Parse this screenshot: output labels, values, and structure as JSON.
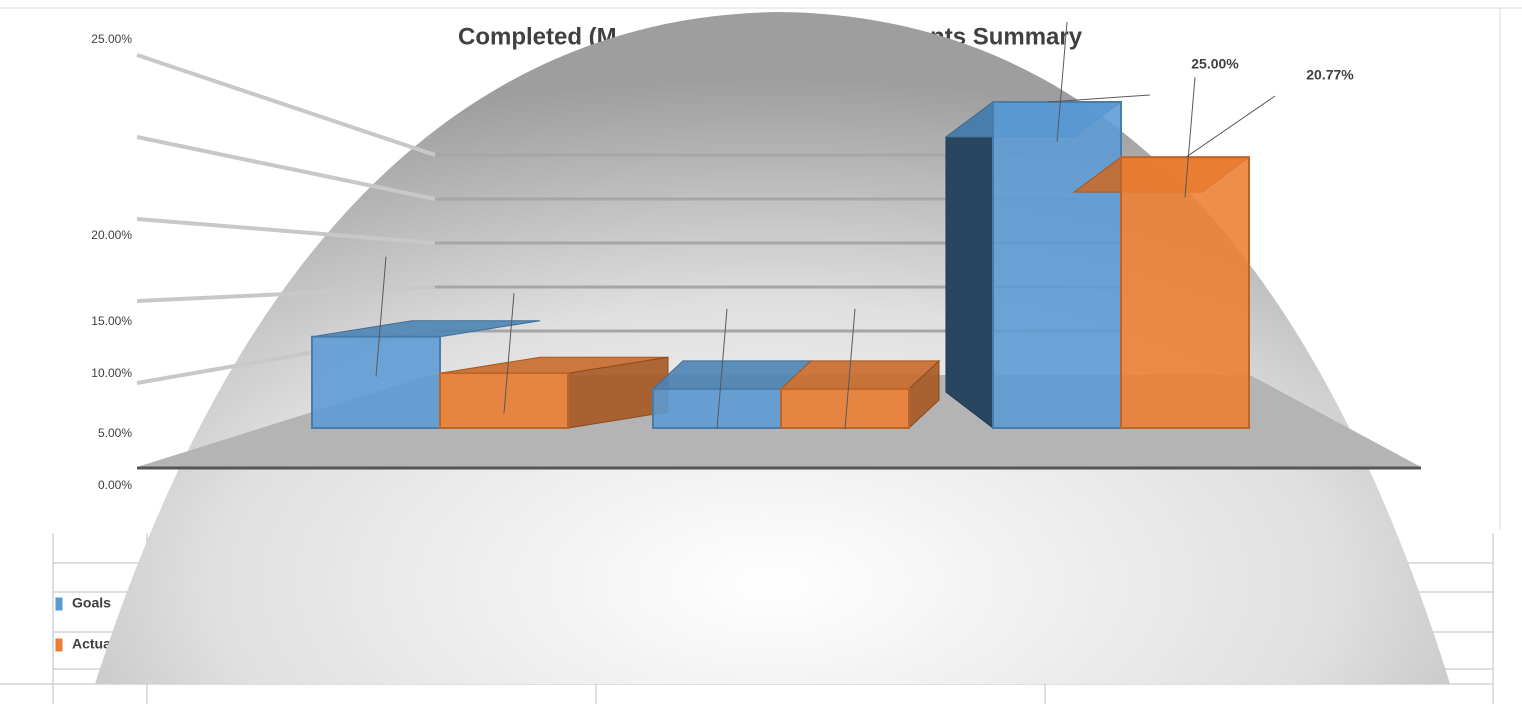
{
  "chart_data": {
    "type": "bar3d",
    "title_parts": [
      "Completed (M",
      "yments Summary"
    ],
    "categories": [
      null,
      null,
      null
    ],
    "series": [
      {
        "name": "Goals",
        "color": "#5b9bd5",
        "values": [
          7,
          3,
          25
        ],
        "value_labels": [
          null,
          null,
          "25.00%"
        ]
      },
      {
        "name": "Actual",
        "color": "#ed7d31",
        "values": [
          4.2,
          3,
          20.77
        ],
        "value_labels": [
          null,
          null,
          "20.77%"
        ]
      }
    ],
    "ylim": [
      0,
      25
    ],
    "yticks": [
      {
        "value": 0,
        "label": "0.00%"
      },
      {
        "value": 5,
        "label": "5.00%"
      },
      {
        "value": 10,
        "label": "10.00%"
      },
      {
        "value": 15,
        "label": "15.00%"
      },
      {
        "value": 20,
        "label": "20.00%"
      },
      {
        "value": 25,
        "label": "25.00%"
      }
    ],
    "grid": true
  }
}
